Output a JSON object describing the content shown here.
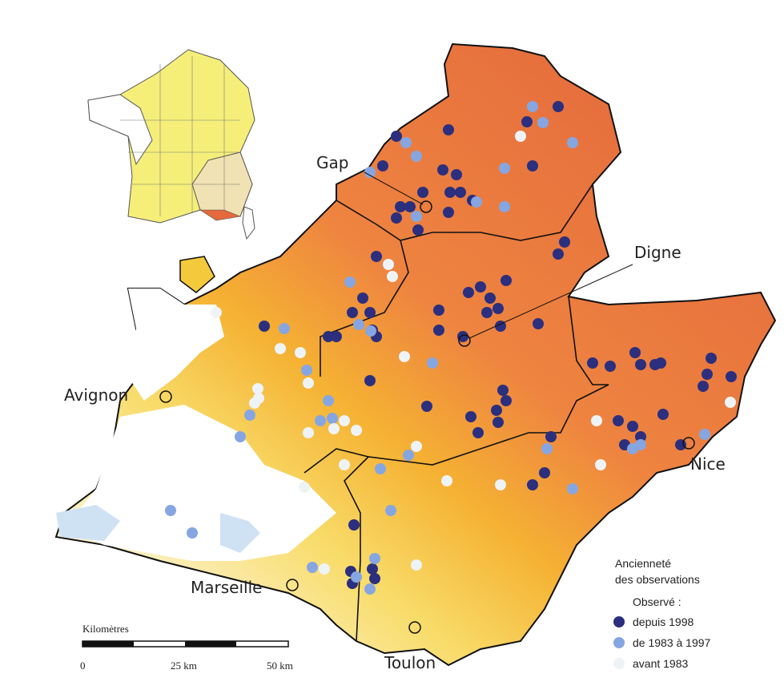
{
  "cities": [
    {
      "label": "Gap"
    },
    {
      "label": "Digne"
    },
    {
      "label": "Avignon"
    },
    {
      "label": "Nice"
    },
    {
      "label": "Marseille"
    },
    {
      "label": "Toulon"
    }
  ],
  "legend": {
    "title_line1": "Ancienneté",
    "title_line2": "des observations",
    "subtitle": "Observé :",
    "items": [
      "depuis 1998",
      "de 1983 à 1997",
      "avant 1983"
    ]
  },
  "scale": {
    "title": "Kilomètres",
    "labels": [
      "0",
      "25 km",
      "50 km"
    ]
  }
}
